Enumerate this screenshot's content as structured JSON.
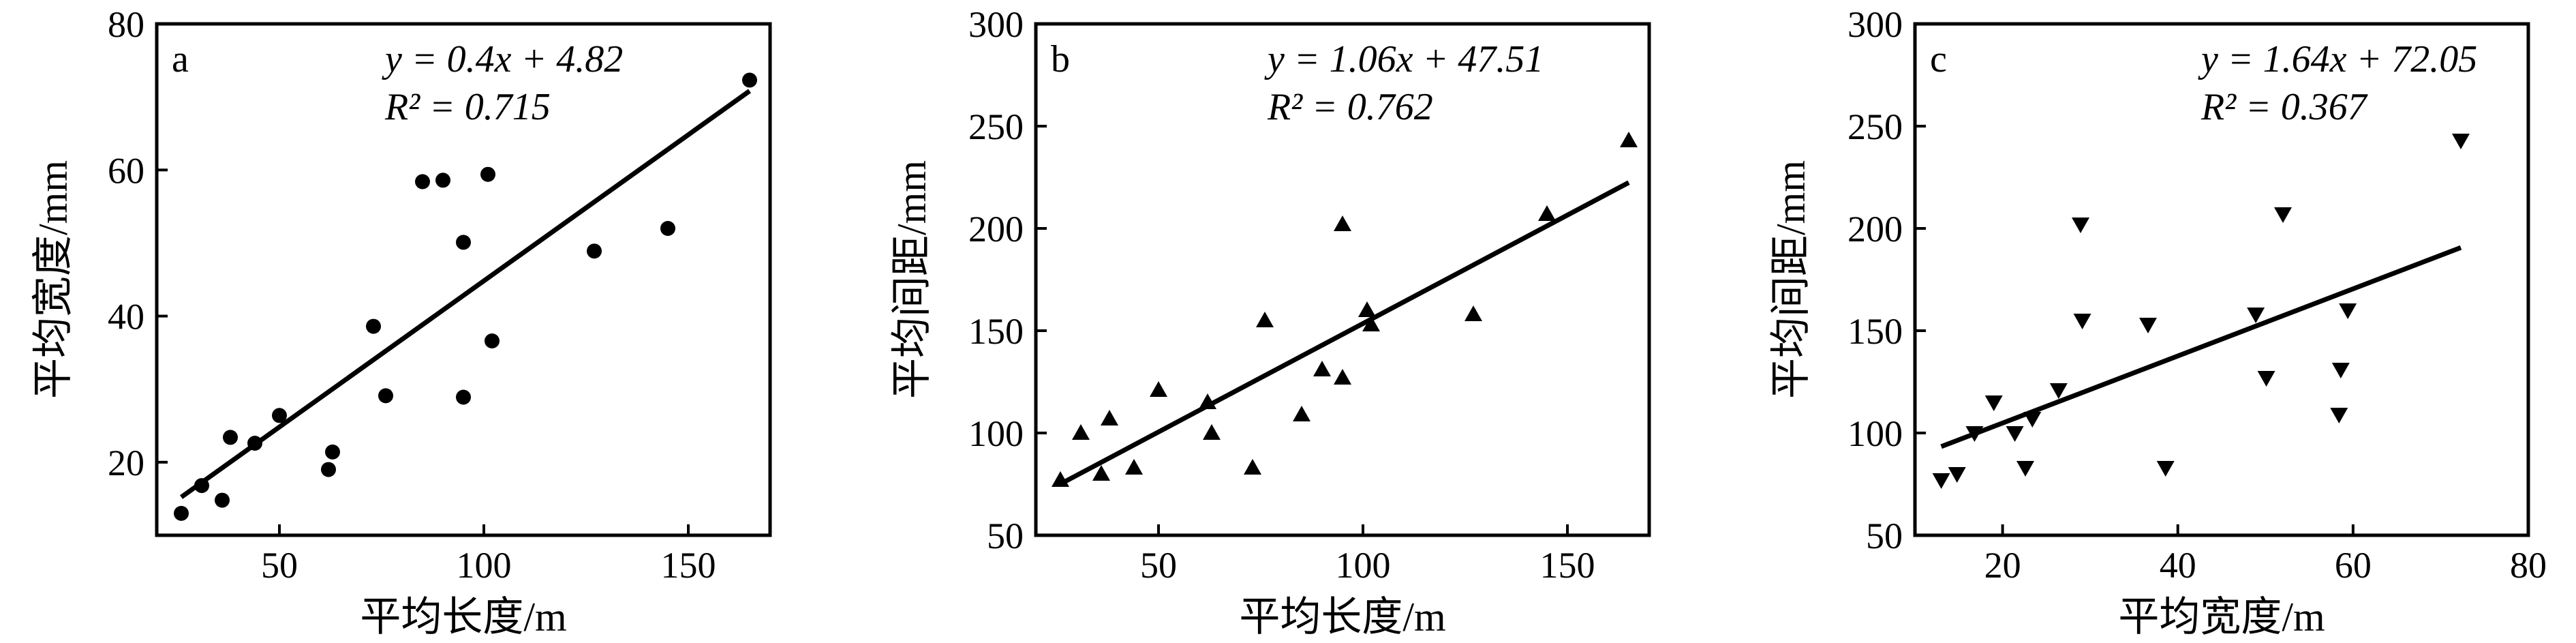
{
  "chart_data": [
    {
      "panel": "a",
      "type": "scatter",
      "marker": "circle",
      "xlabel": "平均长度/m",
      "ylabel": "平均宽度/mm",
      "xlim": [
        20,
        170
      ],
      "ylim": [
        10,
        80
      ],
      "xticks": [
        50,
        100,
        150
      ],
      "yticks": [
        20,
        40,
        60,
        80
      ],
      "equation": "y = 0.4x + 4.82",
      "r2": "R² = 0.715",
      "fit": {
        "slope": 0.4,
        "intercept": 4.82,
        "x_range": [
          26,
          165
        ]
      },
      "points": [
        {
          "x": 26,
          "y": 13
        },
        {
          "x": 31,
          "y": 16.8
        },
        {
          "x": 36,
          "y": 14.8
        },
        {
          "x": 38,
          "y": 23.4
        },
        {
          "x": 44,
          "y": 22.6
        },
        {
          "x": 50,
          "y": 26.4
        },
        {
          "x": 62,
          "y": 19
        },
        {
          "x": 63,
          "y": 21.4
        },
        {
          "x": 73,
          "y": 38.6
        },
        {
          "x": 76,
          "y": 29.1
        },
        {
          "x": 85,
          "y": 58.4
        },
        {
          "x": 90,
          "y": 58.6
        },
        {
          "x": 95,
          "y": 50.1
        },
        {
          "x": 95,
          "y": 28.9
        },
        {
          "x": 101,
          "y": 59.4
        },
        {
          "x": 102,
          "y": 36.6
        },
        {
          "x": 127,
          "y": 48.9
        },
        {
          "x": 145,
          "y": 52
        },
        {
          "x": 165,
          "y": 72.3
        }
      ]
    },
    {
      "panel": "b",
      "type": "scatter",
      "marker": "triangle-up",
      "xlabel": "平均长度/m",
      "ylabel": "平均间距/mm",
      "xlim": [
        20,
        170
      ],
      "ylim": [
        50,
        300
      ],
      "xticks": [
        50,
        100,
        150
      ],
      "yticks": [
        50,
        100,
        150,
        200,
        250,
        300
      ],
      "equation": "y = 1.06x + 47.51",
      "r2": "R² = 0.762",
      "fit": {
        "slope": 1.06,
        "intercept": 47.51,
        "x_range": [
          26,
          165
        ]
      },
      "points": [
        {
          "x": 26,
          "y": 77
        },
        {
          "x": 31,
          "y": 100
        },
        {
          "x": 36,
          "y": 80
        },
        {
          "x": 38,
          "y": 107
        },
        {
          "x": 44,
          "y": 83
        },
        {
          "x": 50,
          "y": 121
        },
        {
          "x": 62,
          "y": 115
        },
        {
          "x": 63,
          "y": 100
        },
        {
          "x": 73,
          "y": 83
        },
        {
          "x": 76,
          "y": 155
        },
        {
          "x": 85,
          "y": 109
        },
        {
          "x": 90,
          "y": 131
        },
        {
          "x": 95,
          "y": 202
        },
        {
          "x": 95,
          "y": 127
        },
        {
          "x": 101,
          "y": 160
        },
        {
          "x": 102,
          "y": 153
        },
        {
          "x": 127,
          "y": 158
        },
        {
          "x": 145,
          "y": 207
        },
        {
          "x": 165,
          "y": 243
        }
      ]
    },
    {
      "panel": "c",
      "type": "scatter",
      "marker": "triangle-down",
      "xlabel": "平均宽度/m",
      "ylabel": "平均间距/mm",
      "xlim": [
        10,
        80
      ],
      "ylim": [
        50,
        300
      ],
      "xticks": [
        20,
        40,
        60,
        80
      ],
      "yticks": [
        50,
        100,
        150,
        200,
        250,
        300
      ],
      "equation": "y = 1.64x + 72.05",
      "r2": "R² = 0.367",
      "fit": {
        "slope": 1.64,
        "intercept": 72.05,
        "x_range": [
          13,
          72.3
        ]
      },
      "points": [
        {
          "x": 13,
          "y": 77
        },
        {
          "x": 14.8,
          "y": 80
        },
        {
          "x": 16.8,
          "y": 100
        },
        {
          "x": 19,
          "y": 115
        },
        {
          "x": 21.4,
          "y": 100
        },
        {
          "x": 22.6,
          "y": 83
        },
        {
          "x": 23.4,
          "y": 107
        },
        {
          "x": 26.4,
          "y": 121
        },
        {
          "x": 28.9,
          "y": 202
        },
        {
          "x": 29.1,
          "y": 155
        },
        {
          "x": 36.6,
          "y": 153
        },
        {
          "x": 38.6,
          "y": 83
        },
        {
          "x": 48.9,
          "y": 158
        },
        {
          "x": 50.1,
          "y": 127
        },
        {
          "x": 52,
          "y": 207
        },
        {
          "x": 58.4,
          "y": 109
        },
        {
          "x": 58.6,
          "y": 131
        },
        {
          "x": 59.4,
          "y": 160
        },
        {
          "x": 72.3,
          "y": 243
        }
      ]
    }
  ]
}
